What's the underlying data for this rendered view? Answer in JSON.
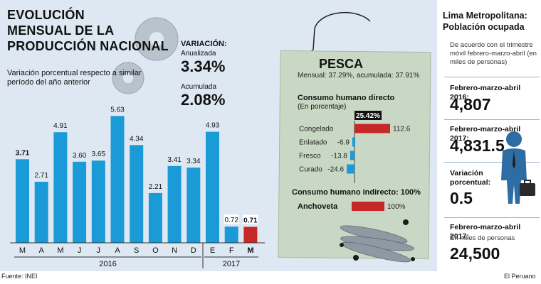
{
  "left": {
    "title_line1": "EVOLUCIÓN",
    "title_line2": "MENSUAL  DE LA",
    "title_line3": "PRODUCCIÓN NACIONAL",
    "subtitle": "Variación porcentual respecto a similar período del año anterior",
    "variation_label": "VARIACIÓN:",
    "annualized_label": "Anualizada",
    "annualized_value": "3.34%",
    "cumulative_label": "Acumulada",
    "cumulative_value": "2.08%"
  },
  "fishing": {
    "title": "PESCA",
    "monthly_label": "Mensual:",
    "monthly_value": "37.29%",
    "sep": ",",
    "cumulative_label": "acumulada:",
    "cumulative_value": "37.91%",
    "direct_title": "Consumo humano directo",
    "direct_unit": "(En porcentaje)",
    "indirect_title": "Consumo humano indirecto: 100%"
  },
  "right": {
    "title_line1": "Lima Metropolitana:",
    "title_line2": "Población ocupada",
    "note": "De acuerdo con el trimestre móvil febrero-marzo-abril (en miles de personas)",
    "p2016_label": "Febrero-marzo-abril 2016:",
    "p2016_value": "4,807",
    "p2017_label": "Febrero-marzo-abril 2017:",
    "p2017_value": "4,831.5",
    "var_label": "Variación porcentual:",
    "var_value": "0.5",
    "people_label": "Febrero-marzo-abril 2017:",
    "people_unit": "En miles de personas",
    "people_value": "24,500"
  },
  "footer": {
    "source": "Fuente: INEI",
    "credit": "El Peruano"
  },
  "colors": {
    "bar_blue": "#1a9ad6",
    "bar_red": "#c62828",
    "paper": "#c9d8c4",
    "panel_bg": "#dde8f2"
  },
  "chart_data": [
    {
      "type": "bar",
      "categories": [
        "M",
        "A",
        "M",
        "J",
        "J",
        "A",
        "S",
        "O",
        "N",
        "D",
        "E",
        "F",
        "M"
      ],
      "values": [
        3.71,
        2.71,
        4.91,
        3.6,
        3.65,
        5.63,
        4.34,
        2.21,
        3.41,
        3.34,
        4.93,
        0.72,
        0.71
      ],
      "value_labels": [
        "3.71",
        "2.71",
        "4.91",
        "3.60",
        "3.65",
        "5.63",
        "4.34",
        "2.21",
        "3.41",
        "3.34",
        "4.93",
        "0.72",
        "0.71"
      ],
      "bold_labels": [
        0,
        12
      ],
      "highlight_index": 12,
      "year_groups": [
        {
          "label": "2016",
          "count": 10
        },
        {
          "label": "2017",
          "count": 3
        }
      ],
      "ylim": [
        0,
        6
      ]
    },
    {
      "type": "bar",
      "orientation": "horizontal",
      "categories": [
        "Congelado",
        "Enlatado",
        "Fresco",
        "Curado"
      ],
      "values": [
        112.6,
        -6.9,
        -13.8,
        -24.6
      ],
      "value_labels": [
        "112.6",
        "-6.9",
        "-13.8",
        "-24.6"
      ],
      "total_badge": "25.42%",
      "indirect": {
        "category": "Anchoveta",
        "value": 100,
        "value_label": "100%"
      }
    }
  ]
}
